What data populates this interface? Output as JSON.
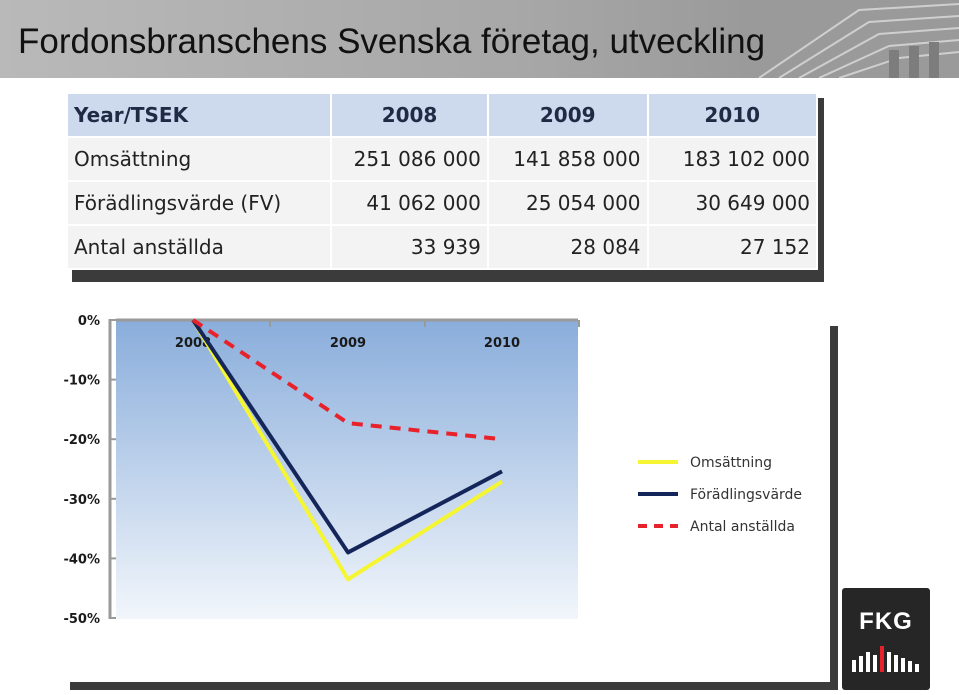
{
  "page": {
    "title": "Fordonsbranschens Svenska företag, utveckling"
  },
  "table": {
    "header": [
      "Year/TSEK",
      "2008",
      "2009",
      "2010"
    ],
    "rows": [
      [
        "Omsättning",
        "251 086 000",
        "141 858 000",
        "183 102 000"
      ],
      [
        "Förädlingsvärde (FV)",
        "41 062 000",
        "25 054 000",
        "30 649 000"
      ],
      [
        "Antal anställda",
        "33 939",
        "28 084",
        "27 152"
      ]
    ]
  },
  "chart_data": {
    "type": "line",
    "title": "",
    "xlabel": "",
    "ylabel": "",
    "categories": [
      "2008",
      "2009",
      "2010"
    ],
    "y_ticks": [
      "0%",
      "-10%",
      "-20%",
      "-30%",
      "-40%",
      "-50%"
    ],
    "ylim": [
      -50,
      0
    ],
    "grid": false,
    "legend_position": "right",
    "series": [
      {
        "name": "Omsättning",
        "values": [
          0,
          -43.5,
          -27.1
        ],
        "color": "#f5f531",
        "dash": "solid"
      },
      {
        "name": "Förädlingsvärde",
        "values": [
          0,
          -39.0,
          -25.4
        ],
        "color": "#14255a",
        "dash": "solid"
      },
      {
        "name": "Antal anställda",
        "values": [
          0,
          -17.3,
          -20.0
        ],
        "color": "#e8222a",
        "dash": "dashed"
      }
    ]
  },
  "logo": {
    "text": "FKG"
  },
  "colors": {
    "plot_top": "#89addb",
    "plot_bottom": "#f2f6fb",
    "header_fill": "#cdd9ec",
    "cell_fill": "#f3f3f3"
  }
}
